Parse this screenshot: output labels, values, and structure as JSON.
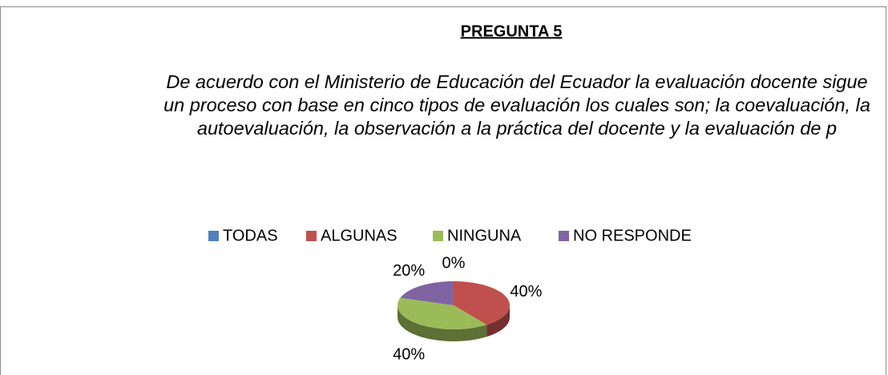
{
  "chart_data": {
    "type": "pie",
    "title": "PREGUNTA 5",
    "subtitle": "De acuerdo con el Ministerio de Educación del Ecuador la evaluación docente sigue un proceso con base en cinco tipos de evaluación los cuales son; la coevaluación, la autoevaluación, la observación a la práctica del docente y la evaluación de p",
    "categories": [
      "TODAS",
      "ALGUNAS",
      "NINGUNA",
      "NO RESPONDE"
    ],
    "values": [
      0,
      40,
      40,
      20
    ],
    "value_labels": [
      "0%",
      "40%",
      "40%",
      "20%"
    ],
    "colors": [
      "#4f81bd",
      "#c0504d",
      "#9bbb59",
      "#8064a2"
    ],
    "legend": "top"
  }
}
